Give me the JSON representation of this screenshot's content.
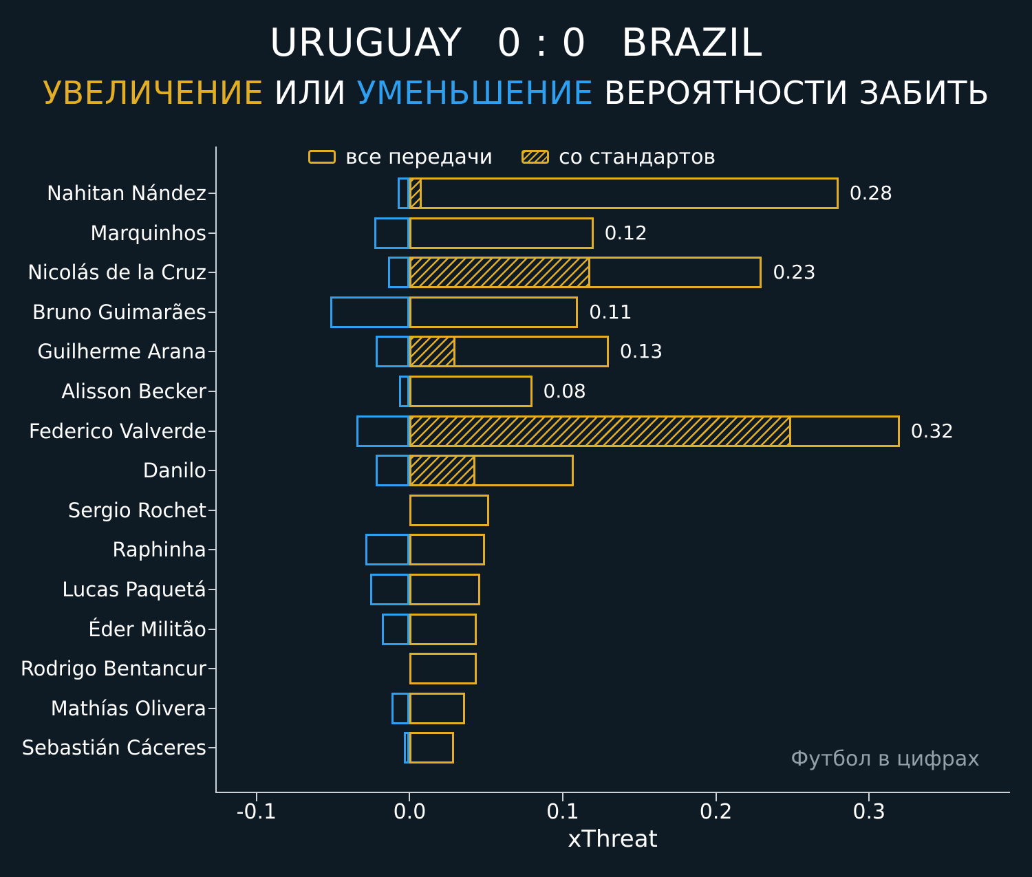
{
  "header": {
    "home_team": "URUGUAY",
    "score": "0 : 0",
    "away_team": "BRAZIL",
    "subtitle_parts": [
      {
        "text": "УВЕЛИЧЕНИЕ",
        "color": "#e2ae25"
      },
      {
        "text": " ИЛИ ",
        "color": "#ffffff"
      },
      {
        "text": "УМЕНЬШЕНИЕ",
        "color": "#2f9ff0"
      },
      {
        "text": " ВЕРОЯТНОСТИ ЗАБИТЬ",
        "color": "#ffffff"
      }
    ]
  },
  "legend": [
    {
      "label": "все передачи",
      "style": "outline"
    },
    {
      "label": "со стандартов",
      "style": "hatched"
    }
  ],
  "watermark": "Футбол в цифрах",
  "colors": {
    "background": "#0e1a24",
    "positive": "#e2ae25",
    "negative": "#2f9ff0",
    "axis": "#ccd2d6",
    "text": "#ffffff",
    "watermark": "#96a0a8"
  },
  "chart_data": {
    "type": "bar",
    "orientation": "horizontal",
    "title": "URUGUAY 0 : 0 BRAZIL",
    "subtitle": "УВЕЛИЧЕНИЕ ИЛИ УМЕНЬШЕНИЕ ВЕРОЯТНОСТИ ЗАБИТЬ",
    "xlabel": "xThreat",
    "x_ticks": [
      -0.1,
      0.0,
      0.1,
      0.2,
      0.3
    ],
    "xlim": [
      -0.126,
      0.392
    ],
    "players": [
      {
        "name": "Nahitan Nández",
        "all_passes": 0.28,
        "set_pieces": 0.008,
        "decrease": -0.008,
        "label": "0.28"
      },
      {
        "name": "Marquinhos",
        "all_passes": 0.12,
        "set_pieces": 0,
        "decrease": -0.023,
        "label": "0.12"
      },
      {
        "name": "Nicolás de la Cruz",
        "all_passes": 0.23,
        "set_pieces": 0.118,
        "decrease": -0.014,
        "label": "0.23"
      },
      {
        "name": "Bruno Guimarães",
        "all_passes": 0.11,
        "set_pieces": 0,
        "decrease": -0.052,
        "label": "0.11"
      },
      {
        "name": "Guilherme Arana",
        "all_passes": 0.13,
        "set_pieces": 0.03,
        "decrease": -0.022,
        "label": "0.13"
      },
      {
        "name": "Alisson Becker",
        "all_passes": 0.08,
        "set_pieces": 0,
        "decrease": -0.007,
        "label": "0.08"
      },
      {
        "name": "Federico Valverde",
        "all_passes": 0.32,
        "set_pieces": 0.249,
        "decrease": -0.035,
        "label": "0.32"
      },
      {
        "name": "Danilo",
        "all_passes": 0.107,
        "set_pieces": 0.043,
        "decrease": -0.022,
        "label": ""
      },
      {
        "name": "Sergio Rochet",
        "all_passes": 0.052,
        "set_pieces": 0,
        "decrease": 0,
        "label": ""
      },
      {
        "name": "Raphinha",
        "all_passes": 0.049,
        "set_pieces": 0,
        "decrease": -0.029,
        "label": ""
      },
      {
        "name": "Lucas Paquetá",
        "all_passes": 0.046,
        "set_pieces": 0,
        "decrease": -0.026,
        "label": ""
      },
      {
        "name": "Éder Militão",
        "all_passes": 0.044,
        "set_pieces": 0,
        "decrease": -0.018,
        "label": ""
      },
      {
        "name": "Rodrigo Bentancur",
        "all_passes": 0.044,
        "set_pieces": 0,
        "decrease": 0,
        "label": ""
      },
      {
        "name": "Mathías Olivera",
        "all_passes": 0.036,
        "set_pieces": 0,
        "decrease": -0.012,
        "label": ""
      },
      {
        "name": "Sebastián Cáceres",
        "all_passes": 0.029,
        "set_pieces": 0,
        "decrease": -0.004,
        "label": ""
      }
    ]
  }
}
